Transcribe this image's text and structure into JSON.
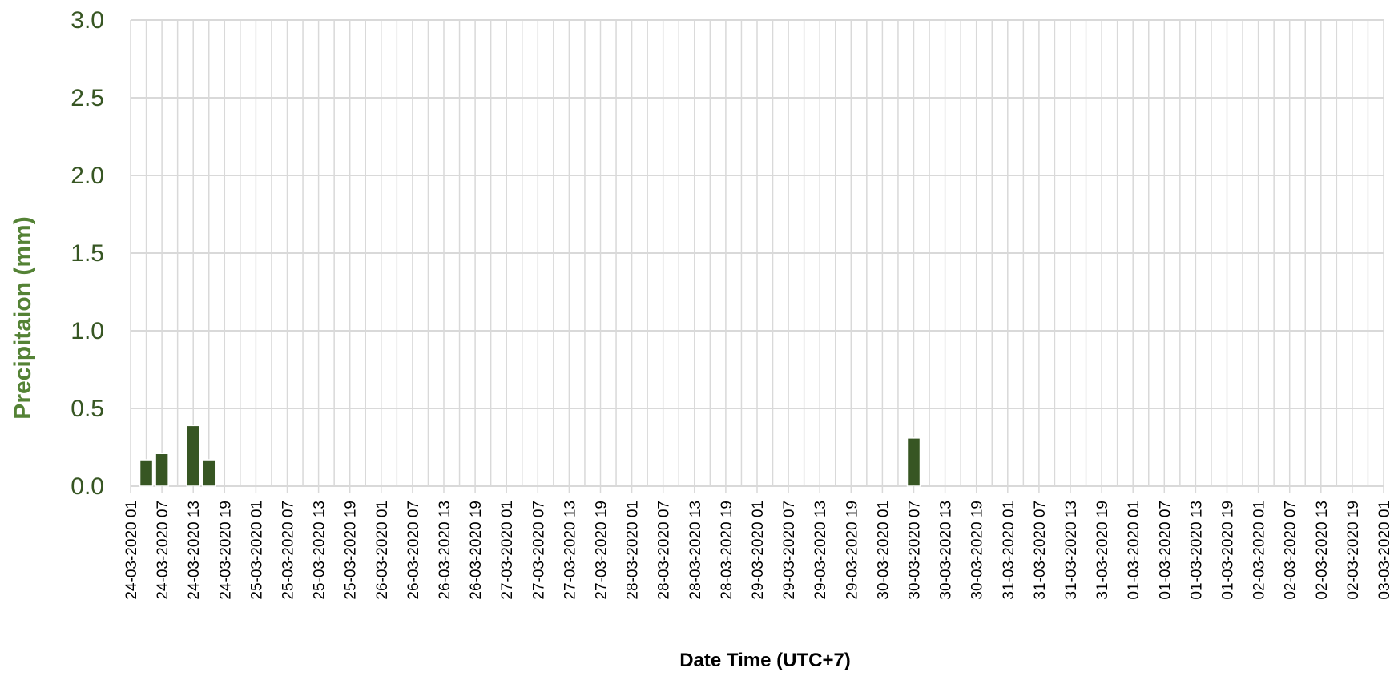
{
  "chart_data": {
    "type": "bar",
    "title": "",
    "xlabel": "Date Time (UTC+7)",
    "ylabel": "Precipitaion  (mm)",
    "ylim": [
      0,
      3.0
    ],
    "yticks": [
      "0.0",
      "0.5",
      "1.0",
      "1.5",
      "2.0",
      "2.5",
      "3.0"
    ],
    "grid": true,
    "legend": "none",
    "x_tick_labels": [
      "24-03-2020 01",
      "24-03-2020 07",
      "24-03-2020 13",
      "24-03-2020 19",
      "25-03-2020 01",
      "25-03-2020 07",
      "25-03-2020 13",
      "25-03-2020 19",
      "26-03-2020 01",
      "26-03-2020 07",
      "26-03-2020 13",
      "26-03-2020 19",
      "27-03-2020 01",
      "27-03-2020 07",
      "27-03-2020 13",
      "27-03-2020 19",
      "28-03-2020 01",
      "28-03-2020 07",
      "28-03-2020 13",
      "28-03-2020 19",
      "29-03-2020 01",
      "29-03-2020 07",
      "29-03-2020 13",
      "29-03-2020 19",
      "30-03-2020 01",
      "30-03-2020 07",
      "30-03-2020 13",
      "30-03-2020 19",
      "31-03-2020 01",
      "31-03-2020 07",
      "31-03-2020 13",
      "31-03-2020 19",
      "01-03-2020 01",
      "01-03-2020 07",
      "01-03-2020 13",
      "01-03-2020 19",
      "02-03-2020 01",
      "02-03-2020 07",
      "02-03-2020 13",
      "02-03-2020 19",
      "03-03-2020 01"
    ],
    "series": [
      {
        "values": [
          {
            "x": "24-03-2020 04",
            "y": 0.17
          },
          {
            "x": "24-03-2020 07",
            "y": 0.21
          },
          {
            "x": "24-03-2020 13",
            "y": 0.39
          },
          {
            "x": "24-03-2020 16",
            "y": 0.17
          },
          {
            "x": "30-03-2020 07",
            "y": 0.31
          }
        ]
      }
    ],
    "colors": {
      "bar": "#375623",
      "bar_outline": "#ffffff",
      "grid": "#d9d9d9",
      "y_tick_text": "#375623",
      "y_label": "#548235",
      "x_text": "#000000"
    }
  }
}
